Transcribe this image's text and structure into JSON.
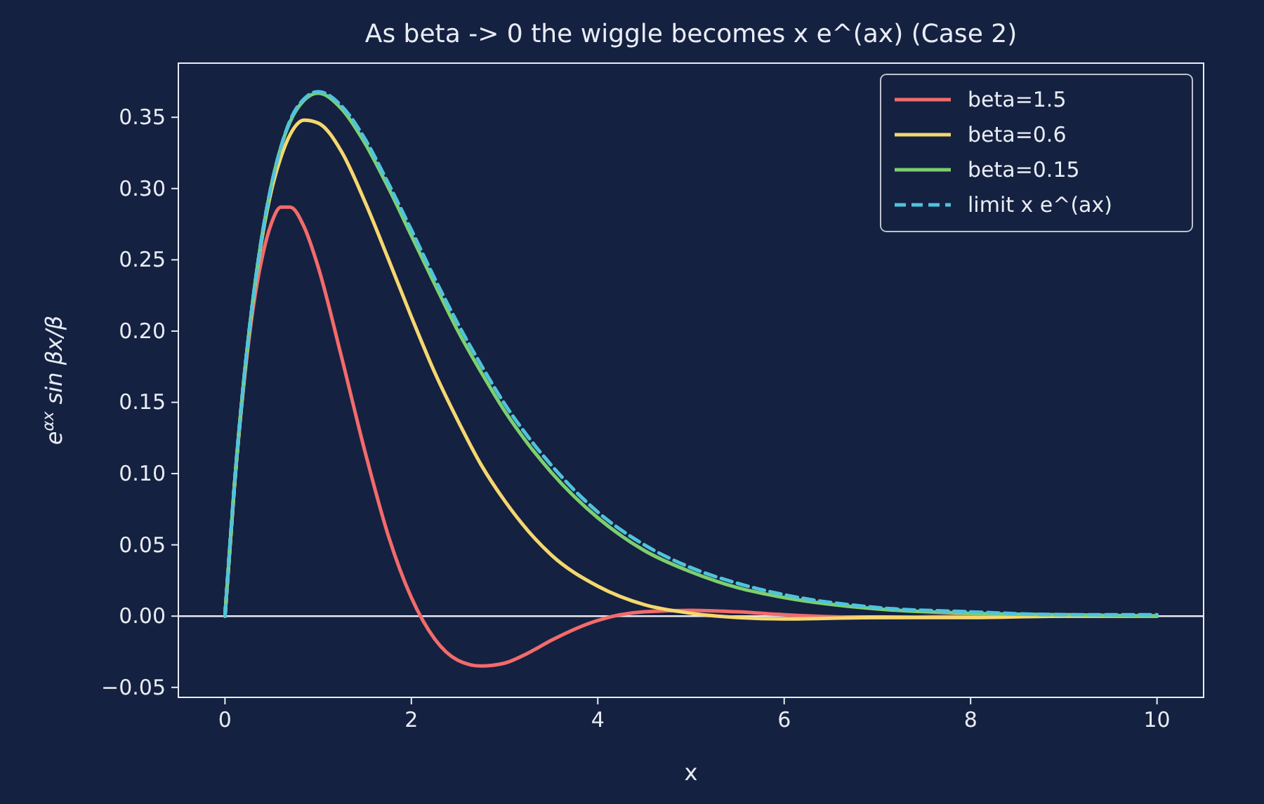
{
  "chart_data": {
    "type": "line",
    "title": "As beta -> 0 the wiggle becomes  x e^(ax)  (Case 2)",
    "xlabel": "x",
    "ylabel": "e$^{αx}$ sin βx/β",
    "x": [
      0,
      0.1,
      0.2,
      0.3,
      0.4,
      0.5,
      0.6,
      0.7,
      0.85,
      1,
      1.25,
      1.5,
      1.75,
      2,
      2.25,
      2.5,
      2.75,
      3,
      3.25,
      3.5,
      4,
      4.5,
      5,
      5.5,
      6,
      7,
      8,
      9,
      10
    ],
    "series": [
      {
        "name": "beta=1.5",
        "color": "#f26b6b",
        "values": [
          0,
          0.09,
          0.161,
          0.215,
          0.252,
          0.276,
          0.287,
          0.287,
          0.273,
          0.245,
          0.182,
          0.116,
          0.057,
          0.013,
          -0.016,
          -0.031,
          -0.035,
          -0.033,
          -0.026,
          -0.017,
          -0.003,
          0.003,
          0.004,
          0.003,
          0.001,
          -0.001,
          0,
          0,
          0
        ]
      },
      {
        "name": "beta=0.6",
        "color": "#f5d76e",
        "values": [
          0,
          0.09,
          0.163,
          0.221,
          0.266,
          0.299,
          0.322,
          0.338,
          0.348,
          0.346,
          0.326,
          0.291,
          0.251,
          0.21,
          0.171,
          0.137,
          0.106,
          0.081,
          0.06,
          0.043,
          0.021,
          0.008,
          0.002,
          -0.001,
          -0.002,
          -0.001,
          -0.001,
          0,
          0
        ]
      },
      {
        "name": "beta=0.15",
        "color": "#7ccf6e",
        "values": [
          0,
          0.091,
          0.164,
          0.222,
          0.268,
          0.303,
          0.329,
          0.347,
          0.362,
          0.367,
          0.356,
          0.332,
          0.301,
          0.267,
          0.233,
          0.2,
          0.171,
          0.144,
          0.121,
          0.101,
          0.069,
          0.046,
          0.031,
          0.02,
          0.013,
          0.005,
          0.002,
          0.001,
          0
        ]
      },
      {
        "name": "limit  x e^(ax)",
        "color": "#4fc3dc",
        "line_style": "dashed",
        "values": [
          0,
          0.091,
          0.164,
          0.222,
          0.268,
          0.303,
          0.329,
          0.348,
          0.363,
          0.368,
          0.358,
          0.335,
          0.304,
          0.271,
          0.237,
          0.205,
          0.176,
          0.149,
          0.126,
          0.106,
          0.073,
          0.05,
          0.034,
          0.023,
          0.015,
          0.006,
          0.003,
          0.001,
          0.001
        ]
      }
    ],
    "xlim": [
      -0.5,
      10.5
    ],
    "xticks": [
      0,
      2,
      4,
      6,
      8,
      10
    ],
    "ylim": [
      -0.057,
      0.388
    ],
    "yticks": [
      {
        "value": -0.05,
        "label": "−0.05"
      },
      {
        "value": 0,
        "label": "0.00"
      },
      {
        "value": 0.05,
        "label": "0.05"
      },
      {
        "value": 0.1,
        "label": "0.10"
      },
      {
        "value": 0.15,
        "label": "0.15"
      },
      {
        "value": 0.2,
        "label": "0.20"
      },
      {
        "value": 0.25,
        "label": "0.25"
      },
      {
        "value": 0.3,
        "label": "0.30"
      },
      {
        "value": 0.35,
        "label": "0.35"
      }
    ],
    "ref_lines": [
      {
        "axis": "y",
        "value": 0,
        "color": "#e8e8f0"
      }
    ],
    "legend": "top right",
    "grid": false
  }
}
